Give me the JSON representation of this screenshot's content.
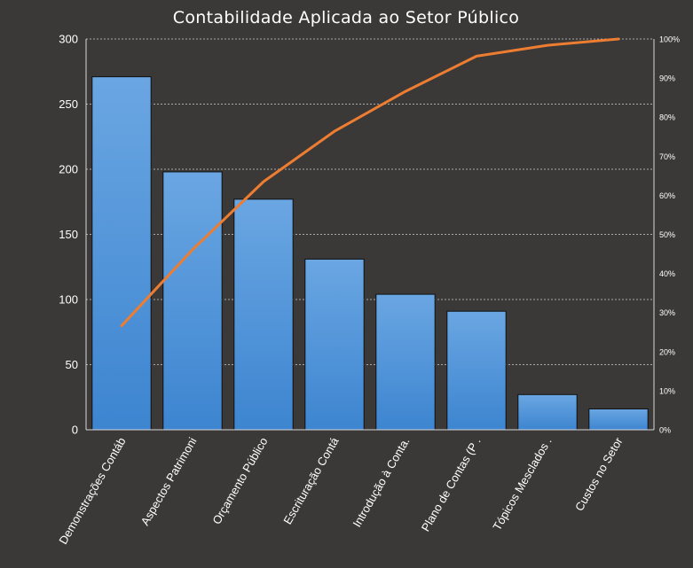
{
  "chart_data": {
    "type": "bar",
    "title": "Contabilidade Aplicada ao Setor Público",
    "xlabel": "",
    "ylabel": "",
    "categories": [
      "Demonstrações Contáb",
      "Aspectos Patrimoni",
      "Orçamento Público",
      "Escrituração Contá",
      "Introdução à Conta.",
      "Plano de Contas (P .",
      "Tópicos Mesclados .",
      "Custos no Setor"
    ],
    "series": [
      {
        "type": "bar",
        "values": [
          271,
          198,
          177,
          131,
          104,
          91,
          27,
          16
        ]
      },
      {
        "type": "line",
        "axis": "right",
        "values": [
          26.6,
          46.1,
          63.5,
          76.4,
          86.6,
          95.6,
          98.4,
          100
        ]
      }
    ],
    "ylim": [
      0,
      300
    ],
    "yticks": [
      "0",
      "50",
      "100",
      "150",
      "200",
      "250",
      "300"
    ],
    "y2lim": [
      0,
      100
    ],
    "y2ticks": [
      "0%",
      "10%",
      "20%",
      "30%",
      "40%",
      "50%",
      "60%",
      "70%",
      "80%",
      "90%",
      "100%"
    ],
    "grid": true,
    "legend": "none",
    "colors": {
      "bar_top": "#6aa6e2",
      "bar_bottom": "#3d85d0",
      "line": "#ed7d31",
      "background": "#3b3838"
    }
  }
}
